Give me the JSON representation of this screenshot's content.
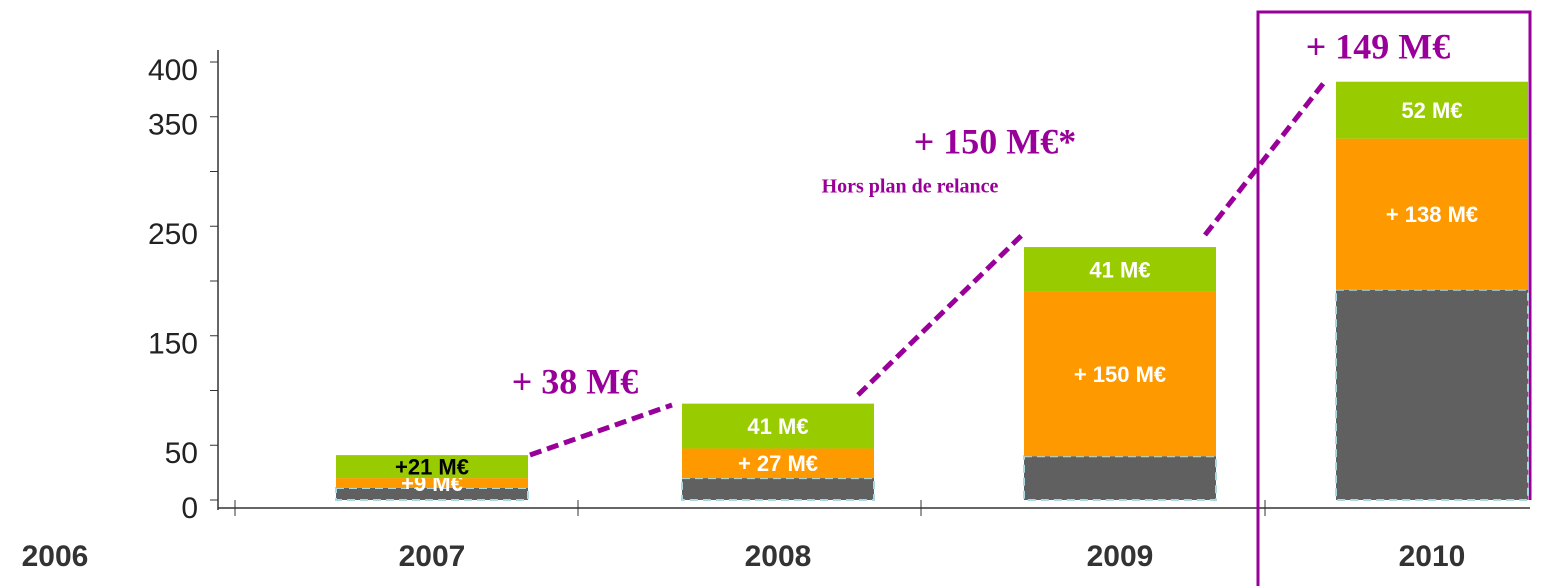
{
  "chart_data": {
    "type": "stacked_bar",
    "categories": [
      "2006",
      "2007",
      "2008",
      "2009",
      "2010"
    ],
    "series": [
      {
        "color": "#606060",
        "values": [
          null,
          11,
          20,
          40,
          192
        ]
      },
      {
        "color": "#ff9900",
        "values": [
          null,
          9,
          27,
          150,
          138
        ],
        "value_labels": [
          null,
          "+9 M€",
          "+ 27 M€",
          "+ 150 M€",
          "+ 138 M€"
        ],
        "value_label_colors": [
          null,
          "#ffffff",
          "#ffffff",
          "#ffffff",
          "#ffffff"
        ]
      },
      {
        "color": "#99cc00",
        "values": [
          null,
          21,
          41,
          41,
          52
        ],
        "value_labels": [
          null,
          "+21 M€",
          "41 M€",
          "41 M€",
          "52 M€"
        ],
        "value_label_colors": [
          null,
          "#000000",
          "#ffffff",
          "#ffffff",
          "#ffffff"
        ]
      }
    ],
    "ylim": [
      0,
      400
    ],
    "yticks": [
      0,
      50,
      150,
      250,
      350,
      400
    ],
    "minor_yticks": [
      100,
      200,
      300
    ],
    "annotations": [
      "+ 38 M€",
      "+ 150 M€*",
      "Hors plan de relance",
      "+ 149 M€"
    ],
    "annotation_color": "#990099"
  }
}
